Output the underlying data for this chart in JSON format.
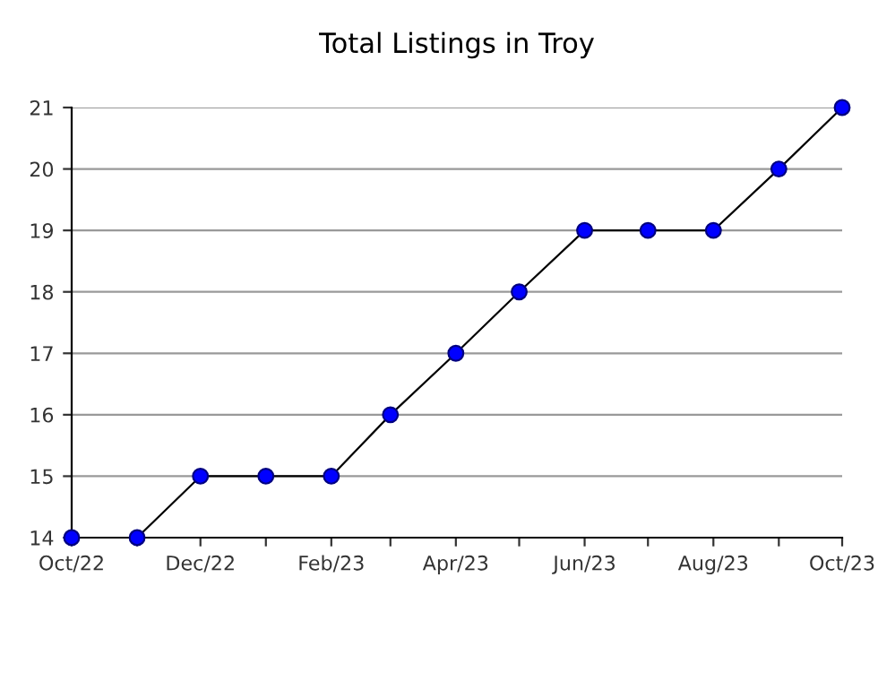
{
  "chart_data": {
    "type": "line",
    "title": "Total Listings in Troy",
    "x": [
      "2022-10",
      "2022-11",
      "2022-12",
      "2023-01",
      "2023-02",
      "2023-03",
      "2023-04",
      "2023-05",
      "2023-06",
      "2023-07",
      "2023-08",
      "2023-09",
      "2023-10"
    ],
    "series": [
      {
        "color": "#0000ff",
        "values": [
          14,
          14,
          15,
          15,
          15,
          16,
          17,
          18,
          19,
          19,
          19,
          20,
          21
        ]
      }
    ],
    "xlim": [
      "2022-10",
      "2023-10"
    ],
    "xticks": [
      {
        "value": "2022-10",
        "label": "Oct/22"
      },
      {
        "value": "2022-11",
        "label": null
      },
      {
        "value": "2022-12",
        "label": "Dec/22"
      },
      {
        "value": "2023-01",
        "label": null
      },
      {
        "value": "2023-02",
        "label": "Feb/23"
      },
      {
        "value": "2023-03",
        "label": null
      },
      {
        "value": "2023-04",
        "label": "Apr/23"
      },
      {
        "value": "2023-05",
        "label": null
      },
      {
        "value": "2023-06",
        "label": "Jun/23"
      },
      {
        "value": "2023-07",
        "label": null
      },
      {
        "value": "2023-08",
        "label": "Aug/23"
      },
      {
        "value": "2023-09",
        "label": null
      },
      {
        "value": "2023-10",
        "label": "Oct/23"
      }
    ],
    "ylim": [
      14,
      21
    ],
    "yticks": [
      14,
      15,
      16,
      17,
      18,
      19,
      20,
      21
    ],
    "grid": "y",
    "marker": "circle",
    "line_style": "solid",
    "legend": false
  }
}
